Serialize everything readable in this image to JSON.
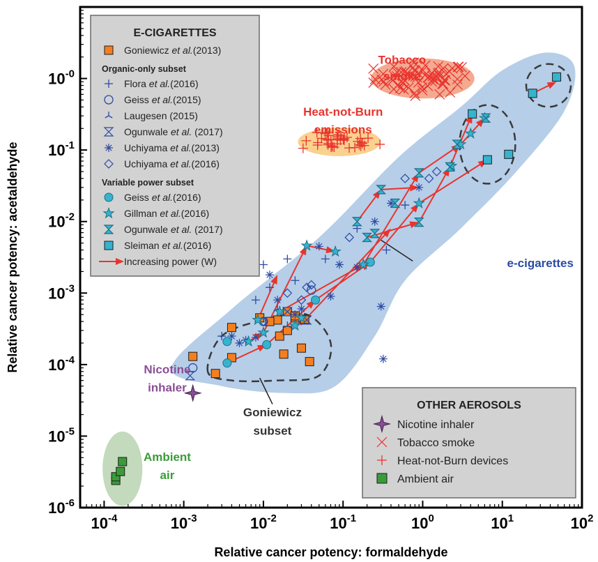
{
  "chart_data": {
    "type": "scatter",
    "xlabel": "Relative cancer potency: formaldehyde",
    "ylabel": "Relative cancer potency: acetaldehyde",
    "x_scale": "log",
    "y_scale": "log",
    "xlim": [
      5e-05,
      100
    ],
    "ylim": [
      1e-06,
      10
    ],
    "x_ticks": [
      {
        "v": 0.0001,
        "base": "10",
        "exp": "-4"
      },
      {
        "v": 0.001,
        "base": "10",
        "exp": "-3"
      },
      {
        "v": 0.01,
        "base": "10",
        "exp": "-2"
      },
      {
        "v": 0.1,
        "base": "10",
        "exp": "-1"
      },
      {
        "v": 1,
        "base": "10",
        "exp": "0"
      },
      {
        "v": 10,
        "base": "10",
        "exp": "1"
      },
      {
        "v": 100,
        "base": "10",
        "exp": "2"
      }
    ],
    "y_ticks": [
      {
        "v": 1e-06,
        "base": "10",
        "exp": "-6"
      },
      {
        "v": 1e-05,
        "base": "10",
        "exp": "-5"
      },
      {
        "v": 0.0001,
        "base": "10",
        "exp": "-4"
      },
      {
        "v": 0.001,
        "base": "10",
        "exp": "-3"
      },
      {
        "v": 0.01,
        "base": "10",
        "exp": "-2"
      },
      {
        "v": 0.1,
        "base": "10",
        "exp": "-1"
      },
      {
        "v": 1,
        "base": "10",
        "exp": "-0"
      }
    ],
    "grid": false,
    "legend_ecig": {
      "title": "E-CIGARETTES",
      "placement": "top-left",
      "sections": [
        {
          "header": "",
          "entries": [
            {
              "pre": "Goniewicz ",
              "it": "et al.",
              "post": "(2013)",
              "marker": "square",
              "color": "#f47f20"
            }
          ]
        },
        {
          "header": "Organic-only subset",
          "entries": [
            {
              "pre": "Flora ",
              "it": "et al.",
              "post": "(2016)",
              "marker": "plus",
              "color": "#2b4aa3"
            },
            {
              "pre": "Geiss ",
              "it": "et al.",
              "post": "(2015)",
              "marker": "circle-open",
              "color": "#2b4aa3"
            },
            {
              "pre": "Laugesen (2015)",
              "it": "",
              "post": "",
              "marker": "tri-star",
              "color": "#2b4aa3"
            },
            {
              "pre": "Ogunwale ",
              "it": "et al.",
              "post": " (2017)",
              "marker": "hourglass-open",
              "color": "#2b4aa3"
            },
            {
              "pre": "Uchiyama ",
              "it": "et al.",
              "post": "(2013)",
              "marker": "asterisk",
              "color": "#2b4aa3"
            },
            {
              "pre": "Uchiyama ",
              "it": "et al.",
              "post": "(2016)",
              "marker": "diamond-open",
              "color": "#2b4aa3"
            }
          ]
        },
        {
          "header": "Variable power subset",
          "entries": [
            {
              "pre": "Geiss ",
              "it": "et al.",
              "post": "(2016)",
              "marker": "circle-filled",
              "color": "#35b3cf"
            },
            {
              "pre": "Gillman ",
              "it": "et al.",
              "post": "(2016)",
              "marker": "star",
              "color": "#35b3cf"
            },
            {
              "pre": "Ogunwale ",
              "it": "et al.",
              "post": " (2017)",
              "marker": "hourglass-filled",
              "color": "#35b3cf"
            },
            {
              "pre": "Sleiman ",
              "it": "et al.",
              "post": "(2016)",
              "marker": "square-teal",
              "color": "#35b3cf"
            },
            {
              "pre": "Increasing power (W)",
              "it": "",
              "post": "",
              "marker": "arrow",
              "color": "#e8342e"
            }
          ]
        }
      ]
    },
    "legend_other": {
      "title": "OTHER AEROSOLS",
      "placement": "bottom-right",
      "entries": [
        {
          "label": "Nicotine inhaler",
          "marker": "star4",
          "color": "#8a4d96"
        },
        {
          "label": "Tobacco smoke",
          "marker": "x",
          "color": "#e8342e"
        },
        {
          "label": "Heat-not-Burn devices",
          "marker": "plus-red",
          "color": "#e8342e"
        },
        {
          "label": "Ambient air",
          "marker": "square-green",
          "color": "#3a9b3a"
        }
      ]
    },
    "annotations": [
      {
        "text": "Tobacco",
        "x": 0.55,
        "y": 1.6,
        "color": "#e8342e"
      },
      {
        "text": "smoke",
        "x": 0.55,
        "y": 0.95,
        "color": "#e8342e"
      },
      {
        "text": "Heat-not-Burn",
        "x": 0.1,
        "y": 0.3,
        "color": "#e8342e"
      },
      {
        "text": "emissions",
        "x": 0.1,
        "y": 0.17,
        "color": "#e8342e"
      },
      {
        "text": "e-cigarettes",
        "x": 30,
        "y": 0.0023,
        "color": "#2b4aa3"
      },
      {
        "text": "Nicotine",
        "x": 0.00062,
        "y": 7.5e-05,
        "color": "#8a4d96"
      },
      {
        "text": "inhaler",
        "x": 0.00062,
        "y": 4.2e-05,
        "color": "#8a4d96"
      },
      {
        "text": "Goniewicz",
        "x": 0.013,
        "y": 1.9e-05,
        "color": "#333333"
      },
      {
        "text": "subset",
        "x": 0.013,
        "y": 1.05e-05,
        "color": "#333333"
      },
      {
        "text": "Ambient",
        "x": 0.00062,
        "y": 4.5e-06,
        "color": "#3a9b3a"
      },
      {
        "text": "air",
        "x": 0.00062,
        "y": 2.5e-06,
        "color": "#3a9b3a"
      }
    ],
    "colors": {
      "ecig_region": "#a9c6e4",
      "tobacco_region": "#f29b7e",
      "hnb_region": "#f9c97a",
      "ambient_region": "#b8d4b0",
      "goniewicz_square": "#f47f20",
      "blue_marker": "#2b4aa3",
      "teal_marker": "#35b3cf",
      "red": "#e8342e",
      "purple": "#8a4d96",
      "green": "#3a9b3a"
    },
    "regions": [
      {
        "name": "e-cigarettes",
        "color": "#a9c6e4",
        "points": [
          [
            0.0007,
            9e-05
          ],
          [
            0.004,
            0.0006
          ],
          [
            0.05,
            0.006
          ],
          [
            0.5,
            0.08
          ],
          [
            3,
            0.4
          ],
          [
            10,
            1.3
          ],
          [
            35,
            2.3
          ],
          [
            80,
            1.5
          ],
          [
            60,
            0.35
          ],
          [
            15,
            0.05
          ],
          [
            3,
            0.008
          ],
          [
            0.6,
            0.0015
          ],
          [
            0.25,
            0.00025
          ],
          [
            0.08,
            5e-05
          ],
          [
            0.02,
            4e-05
          ],
          [
            0.003,
            5e-05
          ]
        ]
      }
    ],
    "ellipses": [
      {
        "name": "tobacco-smoke",
        "cx": 1.0,
        "cy": 1.0,
        "rx_dec": 0.65,
        "ry_dec": 0.28,
        "color": "#f29b7e"
      },
      {
        "name": "heat-not-burn",
        "cx": 0.09,
        "cy": 0.13,
        "rx_dec": 0.52,
        "ry_dec": 0.2,
        "color": "#f9c97a"
      },
      {
        "name": "ambient-air",
        "cx": 0.00017,
        "cy": 3.5e-06,
        "rx_dec": 0.25,
        "ry_dec": 0.52,
        "color": "#b8d4b0"
      }
    ],
    "dashed_regions": [
      {
        "name": "goniewicz-subset",
        "points": [
          [
            0.002,
            8e-05
          ],
          [
            0.003,
            0.00025
          ],
          [
            0.01,
            0.00042
          ],
          [
            0.035,
            0.0005
          ],
          [
            0.07,
            0.0002
          ],
          [
            0.05,
            7e-05
          ],
          [
            0.015,
            6e-05
          ],
          [
            0.004,
            6e-05
          ]
        ]
      },
      {
        "name": "high-power-ring-1",
        "cx": 6.5,
        "cy": 0.12,
        "rx_dec": 0.35,
        "ry_dec": 0.55
      },
      {
        "name": "high-power-ring-2",
        "cx": 38,
        "cy": 0.8,
        "rx_dec": 0.28,
        "ry_dec": 0.3
      }
    ],
    "series": [
      {
        "name": "Goniewicz et al.(2013)",
        "marker": "square",
        "color": "#f47f20",
        "points": [
          [
            0.0013,
            0.00013
          ],
          [
            0.0025,
            7.5e-05
          ],
          [
            0.004,
            0.00033
          ],
          [
            0.009,
            0.00045
          ],
          [
            0.015,
            0.00042
          ],
          [
            0.016,
            0.00025
          ],
          [
            0.02,
            0.0003
          ],
          [
            0.02,
            0.00055
          ],
          [
            0.012,
            0.0004
          ],
          [
            0.025,
            0.00045
          ],
          [
            0.025,
            0.00048
          ],
          [
            0.033,
            0.00043
          ],
          [
            0.018,
            0.00014
          ],
          [
            0.03,
            0.00017
          ],
          [
            0.038,
            0.00011
          ],
          [
            0.004,
            0.000125
          ]
        ]
      },
      {
        "name": "Flora et al.(2016)",
        "marker": "plus",
        "color": "#2b4aa3",
        "points": [
          [
            0.006,
            0.004
          ],
          [
            0.01,
            0.0025
          ],
          [
            0.02,
            0.003
          ],
          [
            0.025,
            0.0015
          ],
          [
            0.06,
            0.003
          ],
          [
            0.15,
            0.008
          ],
          [
            0.35,
            0.004
          ],
          [
            0.6,
            0.017
          ],
          [
            0.012,
            0.0012
          ],
          [
            0.008,
            0.0008
          ],
          [
            0.003,
            0.00025
          ]
        ]
      },
      {
        "name": "Geiss et al.(2015)",
        "marker": "circle-open",
        "color": "#2b4aa3",
        "points": [
          [
            0.0013,
            9e-05
          ],
          [
            0.01,
            0.0004
          ],
          [
            0.04,
            0.0011
          ]
        ]
      },
      {
        "name": "Laugesen (2015)",
        "marker": "tri-star",
        "color": "#2b4aa3",
        "points": [
          [
            0.015,
            0.0006
          ],
          [
            0.02,
            0.00035
          ]
        ]
      },
      {
        "name": "Ogunwale et al. (2017)",
        "marker": "hourglass-open",
        "color": "#2b4aa3",
        "points": [
          [
            0.0012,
            7e-05
          ],
          [
            0.02,
            0.00055
          ],
          [
            0.035,
            0.00042
          ]
        ]
      },
      {
        "name": "Uchiyama et al.(2013)",
        "marker": "asterisk",
        "color": "#2b4aa3",
        "points": [
          [
            0.004,
            0.00025
          ],
          [
            0.005,
            0.0002
          ],
          [
            0.006,
            0.00022
          ],
          [
            0.008,
            0.00024
          ],
          [
            0.012,
            0.0018
          ],
          [
            0.015,
            0.0008
          ],
          [
            0.025,
            0.0005
          ],
          [
            0.03,
            0.0006
          ],
          [
            0.05,
            0.0045
          ],
          [
            0.09,
            0.0025
          ],
          [
            0.15,
            0.0023
          ],
          [
            0.25,
            0.01
          ],
          [
            0.4,
            0.018
          ],
          [
            0.9,
            0.03
          ],
          [
            0.3,
            0.00065
          ],
          [
            0.32,
            0.00012
          ],
          [
            0.07,
            0.0009
          ]
        ]
      },
      {
        "name": "Uchiyama et al.(2016)",
        "marker": "diamond-open",
        "color": "#2b4aa3",
        "points": [
          [
            0.01,
            0.0004
          ],
          [
            0.02,
            0.001
          ],
          [
            0.035,
            0.0012
          ],
          [
            0.04,
            0.0013
          ],
          [
            0.12,
            0.006
          ],
          [
            0.6,
            0.04
          ],
          [
            1.5,
            0.05
          ],
          [
            1.2,
            0.04
          ],
          [
            0.03,
            0.0008
          ]
        ]
      },
      {
        "name": "Geiss et al.(2016)",
        "marker": "circle-filled",
        "color": "#35b3cf",
        "points": [
          [
            0.0035,
            0.000105
          ],
          [
            0.0035,
            0.00021
          ],
          [
            0.011,
            0.00019
          ],
          [
            0.045,
            0.0008
          ],
          [
            0.22,
            0.0027
          ]
        ]
      },
      {
        "name": "Gillman et al.(2016)",
        "marker": "star",
        "color": "#35b3cf",
        "points": [
          [
            0.0065,
            0.00021
          ],
          [
            0.0085,
            0.00042
          ],
          [
            0.01,
            0.00028
          ],
          [
            0.016,
            0.00055
          ],
          [
            0.025,
            0.00035
          ],
          [
            0.03,
            0.00045
          ],
          [
            0.035,
            0.0046
          ],
          [
            0.08,
            0.0038
          ],
          [
            0.18,
            0.0025
          ],
          [
            0.9,
            0.018
          ],
          [
            2.3,
            0.06
          ],
          [
            3,
            0.12
          ],
          [
            4,
            0.17
          ],
          [
            6,
            0.28
          ]
        ]
      },
      {
        "name": "Ogunwale et al. (2017) VP",
        "marker": "hourglass-filled",
        "color": "#35b3cf",
        "points": [
          [
            0.15,
            0.01
          ],
          [
            0.2,
            0.006
          ],
          [
            0.25,
            0.0068
          ],
          [
            0.3,
            0.028
          ],
          [
            0.45,
            0.018
          ],
          [
            0.9,
            0.048
          ],
          [
            0.9,
            0.0098
          ],
          [
            2.2,
            0.058
          ],
          [
            2.7,
            0.12
          ],
          [
            6.2,
            0.28
          ]
        ]
      },
      {
        "name": "Sleiman et al.(2016)",
        "marker": "square-teal",
        "color": "#35b3cf",
        "points": [
          [
            4.2,
            0.32
          ],
          [
            6.5,
            0.073
          ],
          [
            12,
            0.087
          ],
          [
            24,
            0.62
          ],
          [
            48,
            1.05
          ]
        ]
      },
      {
        "name": "Nicotine inhaler",
        "marker": "star4",
        "color": "#8a4d96",
        "points": [
          [
            0.0013,
            4e-05
          ]
        ]
      },
      {
        "name": "Ambient air",
        "marker": "square-green",
        "color": "#3a9b3a",
        "points": [
          [
            0.00014,
            2.4e-06
          ],
          [
            0.00014,
            2.7e-06
          ],
          [
            0.00016,
            3.2e-06
          ],
          [
            0.00017,
            4.4e-06
          ]
        ]
      },
      {
        "name": "Tobacco smoke",
        "marker": "x",
        "color": "#e8342e",
        "cluster": {
          "cx": 1.0,
          "cy": 1.0,
          "sx_dec": 0.3,
          "sy_dec": 0.11,
          "n": 70
        }
      },
      {
        "name": "Heat-not-Burn devices",
        "marker": "plus-red",
        "color": "#e8342e",
        "cluster": {
          "cx": 0.09,
          "cy": 0.13,
          "sx_dec": 0.24,
          "sy_dec": 0.06,
          "n": 40
        }
      }
    ],
    "power_arrows": [
      [
        [
          0.0035,
          0.000105
        ],
        [
          0.011,
          0.00019
        ],
        [
          0.045,
          0.0008
        ],
        [
          0.22,
          0.0027
        ],
        [
          0.9,
          0.018
        ],
        [
          6.5,
          0.073
        ]
      ],
      [
        [
          0.0065,
          0.00021
        ],
        [
          0.01,
          0.00028
        ],
        [
          0.035,
          0.0046
        ],
        [
          0.08,
          0.0038
        ]
      ],
      [
        [
          0.016,
          0.00055
        ],
        [
          0.18,
          0.0025
        ],
        [
          0.9,
          0.048
        ],
        [
          3,
          0.12
        ],
        [
          6,
          0.28
        ]
      ],
      [
        [
          0.2,
          0.006
        ],
        [
          0.9,
          0.0098
        ],
        [
          2.2,
          0.058
        ],
        [
          4.2,
          0.32
        ]
      ],
      [
        [
          24,
          0.62
        ],
        [
          48,
          0.9
        ]
      ],
      [
        [
          0.025,
          0.00035
        ],
        [
          0.035,
          0.00045
        ],
        [
          0.4,
          0.008
        ]
      ],
      [
        [
          0.15,
          0.01
        ],
        [
          0.3,
          0.028
        ],
        [
          0.9,
          0.03
        ]
      ],
      [
        [
          0.0085,
          0.00042
        ],
        [
          0.015,
          0.0018
        ]
      ]
    ]
  }
}
